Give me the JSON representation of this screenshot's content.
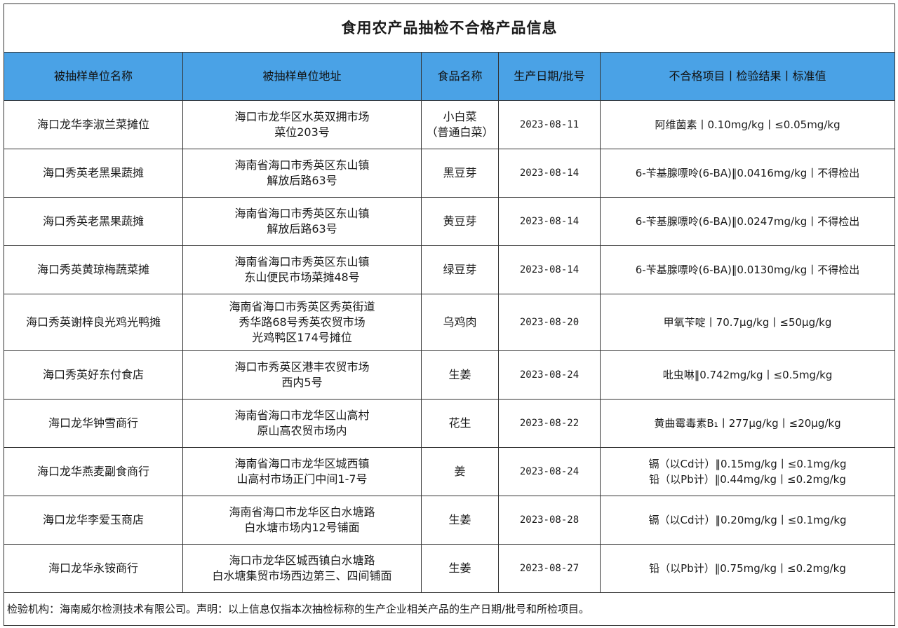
{
  "title": "食用农产品抽检不合格产品信息",
  "headers": [
    "被抽样单位名称",
    "被抽样单位地址",
    "食品名称",
    "生产日期/批号",
    "不合格项目丨检验结果丨标准值"
  ],
  "rows": [
    {
      "unit": "海口龙华李淑兰菜摊位",
      "address": [
        "海口市龙华区水英双拥市场",
        "菜位203号"
      ],
      "food": [
        "小白菜",
        "（普通白菜）"
      ],
      "date": "2023-08-11",
      "result": [
        "阿维菌素丨0.10mg/kg丨≤0.05mg/kg"
      ]
    },
    {
      "unit": "海口秀英老黑果蔬摊",
      "address": [
        "海南省海口市秀英区东山镇",
        "解放后路63号"
      ],
      "food": [
        "黑豆芽"
      ],
      "date": "2023-08-14",
      "result": [
        "6-苄基腺嘌呤(6-BA)‖0.0416mg/kg丨不得检出"
      ]
    },
    {
      "unit": "海口秀英老黑果蔬摊",
      "address": [
        "海南省海口市秀英区东山镇",
        "解放后路63号"
      ],
      "food": [
        "黄豆芽"
      ],
      "date": "2023-08-14",
      "result": [
        "6-苄基腺嘌呤(6-BA)‖0.0247mg/kg丨不得检出"
      ]
    },
    {
      "unit": "海口秀英黄琼梅蔬菜摊",
      "address": [
        "海南省海口市秀英区东山镇",
        "东山便民市场菜摊48号"
      ],
      "food": [
        "绿豆芽"
      ],
      "date": "2023-08-14",
      "result": [
        "6-苄基腺嘌呤(6-BA)‖0.0130mg/kg丨不得检出"
      ]
    },
    {
      "unit": "海口秀英谢梓良光鸡光鸭摊",
      "address": [
        "海南省海口市秀英区秀英街道",
        "秀华路68号秀英农贸市场",
        "光鸡鸭区174号摊位"
      ],
      "food": [
        "乌鸡肉"
      ],
      "date": "2023-08-20",
      "result": [
        "甲氧苄啶丨70.7μg/kg丨≤50μg/kg"
      ]
    },
    {
      "unit": "海口秀英好东付食店",
      "address": [
        "海口市秀英区港丰农贸市场",
        "西内5号"
      ],
      "food": [
        "生姜"
      ],
      "date": "2023-08-24",
      "result": [
        "吡虫啉‖0.742mg/kg丨≤0.5mg/kg"
      ]
    },
    {
      "unit": "海口龙华钟雪商行",
      "address": [
        "海南省海口市龙华区山高村",
        "原山高农贸市场内"
      ],
      "food": [
        "花生"
      ],
      "date": "2023-08-22",
      "result": [
        "黄曲霉毒素B₁丨277μg/kg丨≤20μg/kg"
      ]
    },
    {
      "unit": "海口龙华燕麦副食商行",
      "address": [
        "海南省海口市龙华区城西镇",
        "山高村市场正门中间1-7号"
      ],
      "food": [
        "姜"
      ],
      "date": "2023-08-24",
      "result": [
        "镉（以Cd计）‖0.15mg/kg丨≤0.1mg/kg",
        "铅（以Pb计）‖0.44mg/kg丨≤0.2mg/kg"
      ]
    },
    {
      "unit": "海口龙华李爱玉商店",
      "address": [
        "海南省海口市龙华区白水塘路",
        "白水塘市场内12号铺面"
      ],
      "food": [
        "生姜"
      ],
      "date": "2023-08-28",
      "result": [
        "镉（以Cd计）‖0.20mg/kg丨≤0.1mg/kg"
      ]
    },
    {
      "unit": "海口龙华永铵商行",
      "address": [
        "海口市龙华区城西镇白水塘路",
        "白水塘集贸市场西边第三、四间铺面"
      ],
      "food": [
        "生姜"
      ],
      "date": "2023-08-27",
      "result": [
        "铅（以Pb计）‖0.75mg/kg丨≤0.2mg/kg"
      ]
    }
  ],
  "footer": "检验机构：海南威尔检测技术有限公司。声明：以上信息仅指本次抽检标称的生产企业相关产品的生产日期/批号和所检项目。",
  "colors": {
    "header_bg": "#4aa2e6",
    "border": "#333333"
  }
}
